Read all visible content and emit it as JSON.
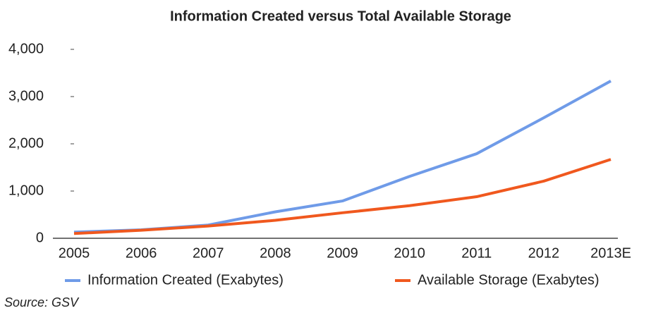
{
  "chart_data": {
    "type": "line",
    "title": "Information Created versus Total Available Storage",
    "categories": [
      "2005",
      "2006",
      "2007",
      "2008",
      "2009",
      "2010",
      "2011",
      "2012",
      "2013E"
    ],
    "series": [
      {
        "name": "Information Created (Exabytes)",
        "color": "#6f9be8",
        "values": [
          130,
          180,
          280,
          560,
          790,
          1310,
          1790,
          2550,
          3330
        ]
      },
      {
        "name": "Available Storage (Exabytes)",
        "color": "#f0581e",
        "values": [
          100,
          170,
          260,
          380,
          540,
          690,
          880,
          1210,
          1670
        ]
      }
    ],
    "ylim": [
      0,
      4000
    ],
    "yticks": [
      0,
      {
        "value": 1000,
        "label": "1,000"
      },
      {
        "value": 2000,
        "label": "2,000"
      },
      {
        "value": 3000,
        "label": "3,000"
      },
      {
        "value": 4000,
        "label": "4,000"
      }
    ],
    "grid": false,
    "legend": "bottom",
    "source": "Source: GSV"
  }
}
